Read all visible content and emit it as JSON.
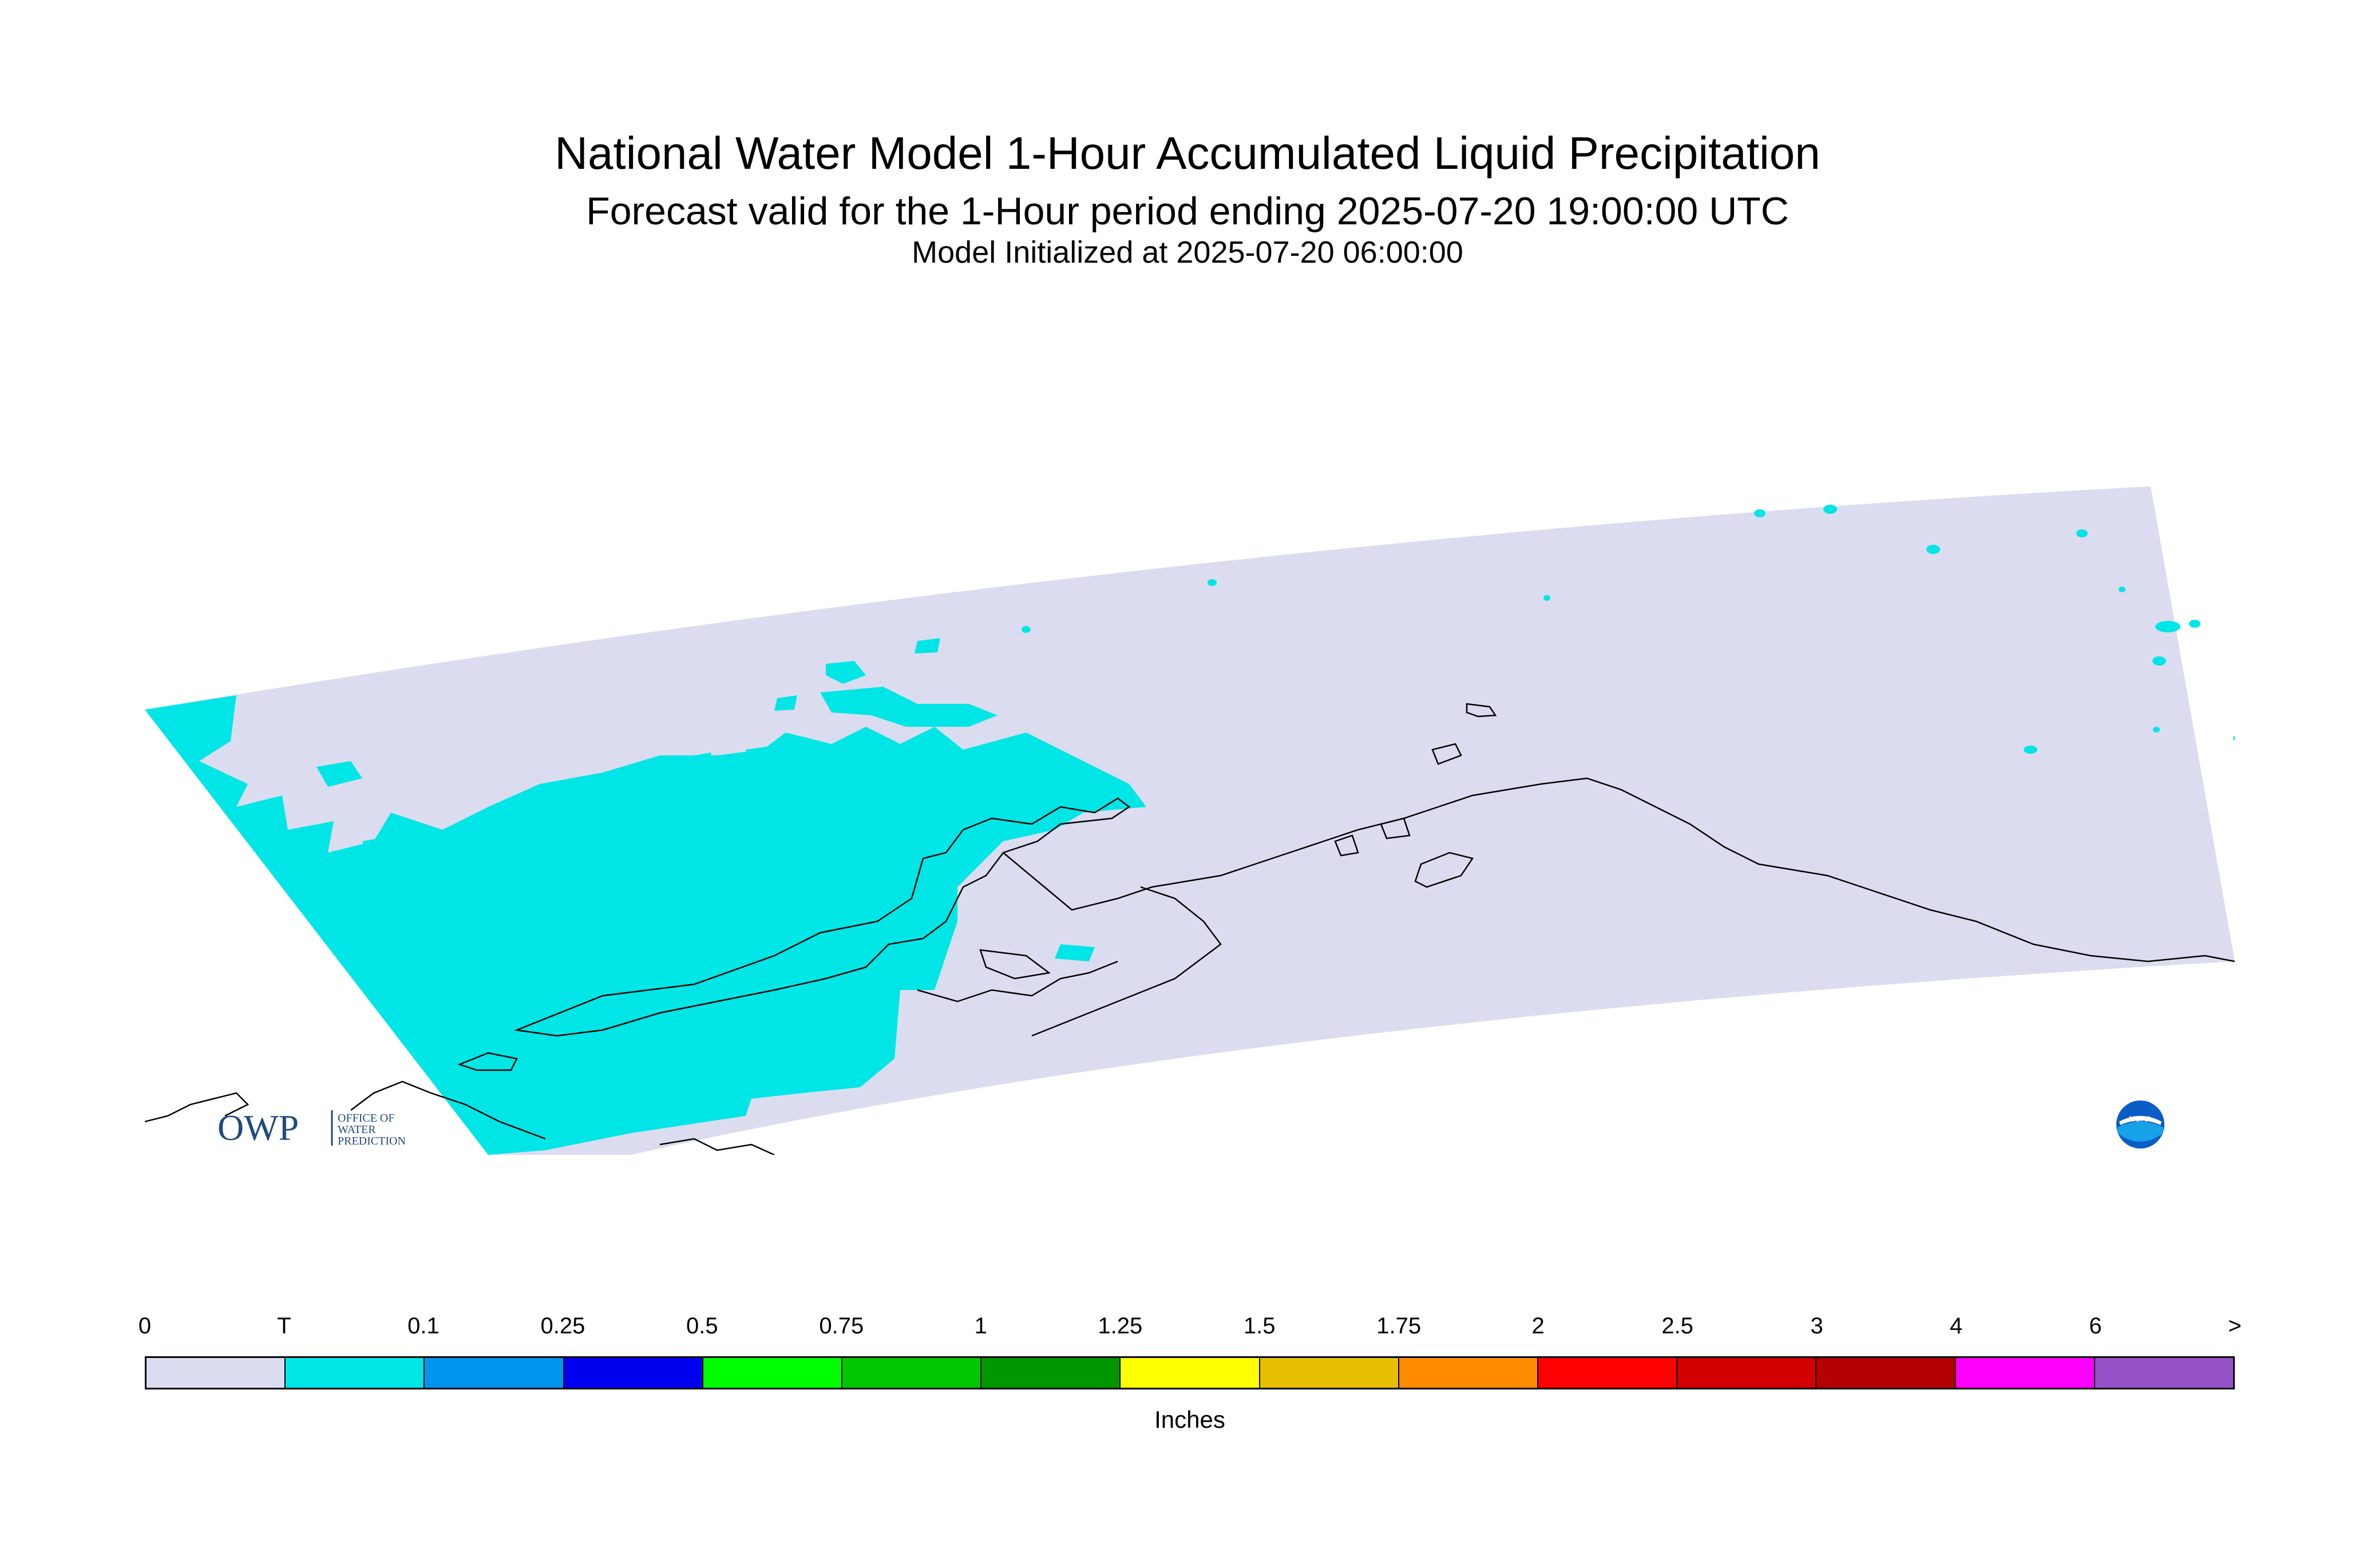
{
  "title": "National Water Model 1-Hour Accumulated Liquid Precipitation",
  "subtitle": "Forecast valid for the 1-Hour period ending 2025-07-20 19:00:00 UTC",
  "initialized": "Model Initialized at 2025-07-20 06:00:00",
  "map": {
    "domain_color": "#dcdcf0",
    "precip_color": "#00e6e6",
    "coast_color": "#000000"
  },
  "logos": {
    "owp": {
      "abbr": "OWP",
      "line1": "OFFICE OF",
      "line2": "WATER",
      "line3": "PREDICTION"
    },
    "noaa": {
      "text": "NOAA"
    }
  },
  "legend": {
    "ticks": [
      "0",
      "T",
      "0.1",
      "0.25",
      "0.5",
      "0.75",
      "1",
      "1.25",
      "1.5",
      "1.75",
      "2",
      "2.5",
      "3",
      "4",
      "6",
      ">"
    ],
    "colors": [
      "#dcdcf0",
      "#00e6e6",
      "#0096f0",
      "#0000f0",
      "#00ff00",
      "#00c800",
      "#009600",
      "#ffff00",
      "#e6c000",
      "#ff8c00",
      "#ff0000",
      "#d20000",
      "#b40000",
      "#ff00ff",
      "#9650c8"
    ],
    "units": "Inches"
  }
}
